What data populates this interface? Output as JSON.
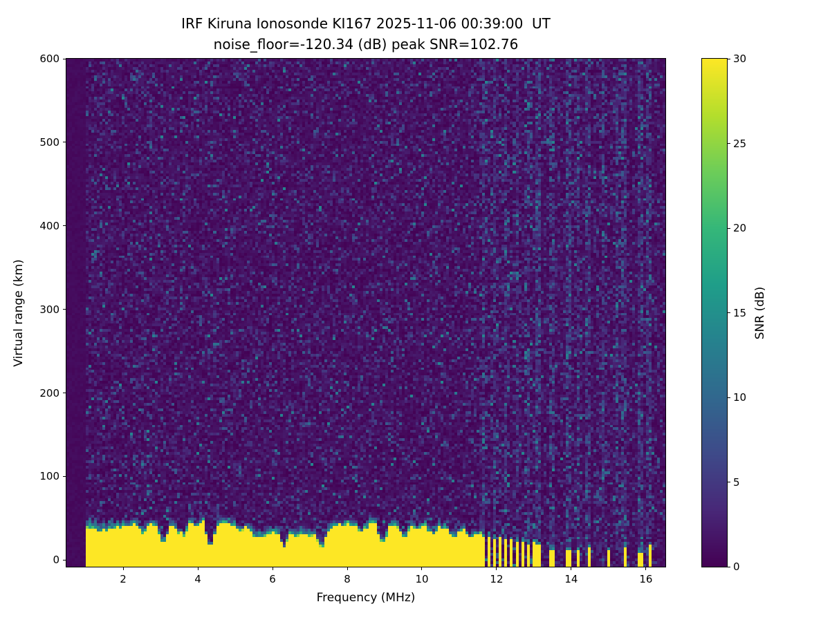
{
  "chart_data": {
    "type": "heatmap",
    "title": "IRF Kiruna Ionosonde KI167 2025-11-06 00:39:00  UT",
    "subtitle": "noise_floor=-120.34 (dB) peak SNR=102.76",
    "xlabel": "Frequency (MHz)",
    "ylabel": "Virtual range (km)",
    "colorbar_label": "SNR (dB)",
    "colormap": "viridis",
    "legend_position": "right-colorbar",
    "grid": false,
    "xlim": [
      0.48,
      16.52
    ],
    "ylim": [
      -8,
      600
    ],
    "clim": [
      0,
      30
    ],
    "xticks": [
      2,
      4,
      6,
      8,
      10,
      12,
      14,
      16
    ],
    "yticks": [
      0,
      100,
      200,
      300,
      400,
      500,
      600
    ],
    "cticks": [
      0,
      5,
      10,
      15,
      20,
      25,
      30
    ],
    "background_noise_db": [
      0,
      2.2
    ],
    "speckle_noise_max_db": 14,
    "ground_echo": {
      "freq_start_mhz": 0.95,
      "freq_end_mhz": 11.62,
      "snr_db": 30,
      "top_km_mean": 34,
      "top_km_min": 27,
      "top_km_max": 46,
      "left_enhancement_below_mhz": 1.9,
      "teal_cap_km": [
        4,
        12
      ],
      "notches": [
        {
          "f_mhz": 2.5,
          "depth": 0.72
        },
        {
          "f_mhz": 3.05,
          "depth": 0.4
        },
        {
          "f_mhz": 3.6,
          "depth": 0.55
        },
        {
          "f_mhz": 4.3,
          "depth": 0.38
        },
        {
          "f_mhz": 5.1,
          "depth": 0.7
        },
        {
          "f_mhz": 5.6,
          "depth": 0.78
        },
        {
          "f_mhz": 6.3,
          "depth": 0.35
        },
        {
          "f_mhz": 7.3,
          "depth": 0.38
        },
        {
          "f_mhz": 8.4,
          "depth": 0.7
        },
        {
          "f_mhz": 8.95,
          "depth": 0.45
        },
        {
          "f_mhz": 9.55,
          "depth": 0.65
        },
        {
          "f_mhz": 10.3,
          "depth": 0.72
        },
        {
          "f_mhz": 10.85,
          "depth": 0.68
        },
        {
          "f_mhz": 11.3,
          "depth": 0.75
        }
      ]
    },
    "sparse_echoes": [
      {
        "f_mhz": 11.68,
        "top_km": 26
      },
      {
        "f_mhz": 11.82,
        "top_km": 27
      },
      {
        "f_mhz": 11.96,
        "top_km": 24
      },
      {
        "f_mhz": 12.1,
        "top_km": 25
      },
      {
        "f_mhz": 12.25,
        "top_km": 22
      },
      {
        "f_mhz": 12.4,
        "top_km": 23
      },
      {
        "f_mhz": 12.55,
        "top_km": 20
      },
      {
        "f_mhz": 12.7,
        "top_km": 21
      },
      {
        "f_mhz": 12.85,
        "top_km": 18
      },
      {
        "f_mhz": 13.0,
        "top_km": 19
      },
      {
        "f_mhz": 13.13,
        "top_km": 16
      },
      {
        "f_mhz": 13.5,
        "top_km": 11
      },
      {
        "f_mhz": 13.95,
        "top_km": 9
      },
      {
        "f_mhz": 14.2,
        "top_km": 10
      },
      {
        "f_mhz": 14.48,
        "top_km": 12
      },
      {
        "f_mhz": 15.0,
        "top_km": 9
      },
      {
        "f_mhz": 15.45,
        "top_km": 14
      },
      {
        "f_mhz": 15.88,
        "top_km": 8
      },
      {
        "f_mhz": 16.12,
        "top_km": 16
      }
    ],
    "rfi_noise_columns_mhz": [
      11.68,
      11.96,
      12.25,
      12.55,
      12.85,
      13.13,
      13.5,
      13.95,
      14.2,
      14.48,
      14.9,
      15.25,
      15.45,
      15.88,
      16.12
    ],
    "colors": {
      "viridis_low": "#440154",
      "viridis_mid": "#21918c",
      "viridis_high": "#fde725"
    }
  }
}
